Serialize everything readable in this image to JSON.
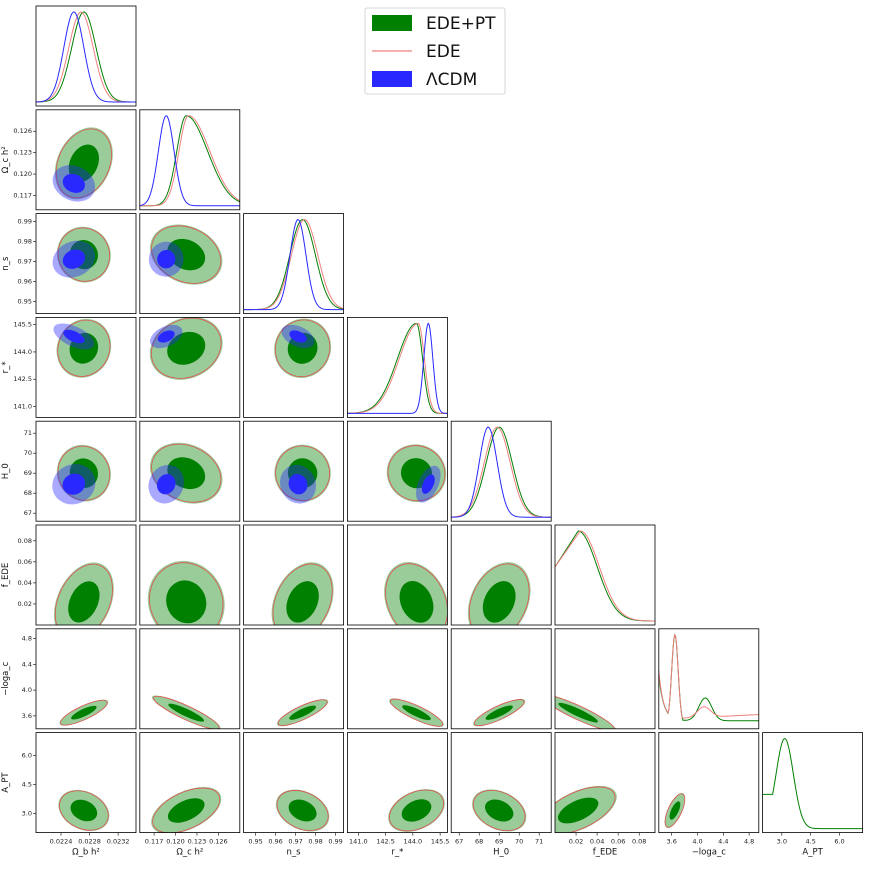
{
  "chart_data": {
    "type": "corner",
    "title": "",
    "legend": {
      "placement": "top-center",
      "entries": [
        {
          "label": "EDE+PT",
          "color": "#008000",
          "style": "patch"
        },
        {
          "label": "EDE",
          "color": "#f08080",
          "style": "line"
        },
        {
          "label": "ΛCDM",
          "color": "#2828ff",
          "style": "patch"
        }
      ]
    },
    "parameters": [
      {
        "key": "omega_b",
        "label": "Ω_b h²",
        "range": [
          0.02205,
          0.02345
        ],
        "ticks": [
          0.0224,
          0.0228,
          0.0232
        ],
        "tick_labels": [
          "0.0224",
          "0.0228",
          "0.0232"
        ],
        "marginal": {
          "EDE+PT": {
            "mean": 0.02272,
            "sd": 0.00017
          },
          "EDE": {
            "mean": 0.02268,
            "sd": 0.00017
          },
          "ΛCDM": {
            "mean": 0.02258,
            "sd": 0.00014
          }
        }
      },
      {
        "key": "omega_c",
        "label": "Ω_c h²",
        "range": [
          0.115,
          0.129
        ],
        "ticks": [
          0.117,
          0.12,
          0.123,
          0.126
        ],
        "tick_labels": [
          "0.117",
          "0.120",
          "0.123",
          "0.126"
        ],
        "marginal": {
          "EDE+PT": {
            "mean": 0.1215,
            "sd": 0.0024
          },
          "EDE": {
            "mean": 0.1218,
            "sd": 0.0024
          },
          "ΛCDM": {
            "mean": 0.1187,
            "sd": 0.0011
          }
        }
      },
      {
        "key": "n_s",
        "label": "n_s",
        "range": [
          0.944,
          0.994
        ],
        "ticks": [
          0.95,
          0.96,
          0.97,
          0.98,
          0.99
        ],
        "tick_labels": [
          "0.95",
          "0.96",
          "0.97",
          "0.98",
          "0.99"
        ],
        "marginal": {
          "EDE+PT": {
            "mean": 0.9735,
            "sd": 0.0064
          },
          "EDE": {
            "mean": 0.9745,
            "sd": 0.0066
          },
          "ΛCDM": {
            "mean": 0.9712,
            "sd": 0.004
          }
        }
      },
      {
        "key": "r_s",
        "label": "r_*",
        "range": [
          140.4,
          145.9
        ],
        "ticks": [
          141.0,
          142.5,
          144.0,
          145.5
        ],
        "tick_labels": [
          "141.0",
          "142.5",
          "144.0",
          "145.5"
        ],
        "marginal": {
          "EDE+PT": {
            "mean": 144.2,
            "sd": 0.75
          },
          "EDE": {
            "mean": 144.3,
            "sd": 0.75
          },
          "ΛCDM": {
            "mean": 144.85,
            "sd": 0.25
          }
        }
      },
      {
        "key": "H0",
        "label": "H_0",
        "range": [
          66.6,
          71.6
        ],
        "ticks": [
          67,
          68,
          69,
          70,
          71
        ],
        "tick_labels": [
          "67",
          "68",
          "69",
          "70",
          "71"
        ],
        "marginal": {
          "EDE+PT": {
            "mean": 69.0,
            "sd": 0.65
          },
          "EDE": {
            "mean": 68.9,
            "sd": 0.65
          },
          "ΛCDM": {
            "mean": 68.45,
            "sd": 0.45
          }
        }
      },
      {
        "key": "f_EDE",
        "label": "f_EDE",
        "range": [
          0.0,
          0.095
        ],
        "ticks": [
          0.02,
          0.04,
          0.06,
          0.08
        ],
        "tick_labels": [
          "0.02",
          "0.04",
          "0.06",
          "0.08"
        ],
        "marginal": {
          "EDE+PT": {
            "mode": 0.022,
            "sd": 0.018
          },
          "EDE": {
            "mode": 0.024,
            "sd": 0.018
          }
        }
      },
      {
        "key": "log_ac",
        "label": "−loga_c",
        "range": [
          3.4,
          4.95
        ],
        "ticks": [
          3.6,
          4.0,
          4.4,
          4.8
        ],
        "tick_labels": [
          "3.6",
          "4.0",
          "4.4",
          "4.8"
        ],
        "marginal": {
          "EDE+PT": {
            "peak": 3.65,
            "sd": 0.05
          },
          "EDE": {
            "peak": 3.65,
            "sd": 0.05
          }
        }
      },
      {
        "key": "A_PT",
        "label": "A_PT",
        "range": [
          2.0,
          7.2
        ],
        "ticks": [
          3.0,
          4.5,
          6.0
        ],
        "tick_labels": [
          "3.0",
          "4.5",
          "6.0"
        ],
        "marginal": {
          "EDE+PT": {
            "mean": 3.15,
            "sd": 0.45
          }
        }
      }
    ],
    "series": [
      {
        "name": "EDE+PT",
        "color": "#008000"
      },
      {
        "name": "EDE",
        "color": "#f08080"
      },
      {
        "name": "ΛCDM",
        "color": "#2828ff"
      }
    ]
  }
}
